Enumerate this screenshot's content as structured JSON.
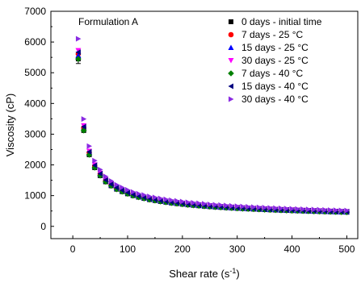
{
  "chart_data": {
    "type": "scatter",
    "annotation": "Formulation A",
    "xlabel": {
      "main": "Shear rate (s",
      "sup": "-1",
      "end": ")"
    },
    "ylabel": "Viscosity (cP)",
    "xlim": [
      -40,
      520
    ],
    "ylim": [
      -400,
      7000
    ],
    "xticks": [
      0,
      100,
      200,
      300,
      400,
      500
    ],
    "yticks": [
      0,
      1000,
      2000,
      3000,
      4000,
      5000,
      6000,
      7000
    ],
    "xtick_labels": [
      "0",
      "100",
      "200",
      "300",
      "400",
      "500"
    ],
    "ytick_labels": [
      "0",
      "1000",
      "2000",
      "3000",
      "4000",
      "5000",
      "6000",
      "7000"
    ],
    "grid": false,
    "legend_position": "top-right",
    "x": [
      10,
      20,
      30,
      40,
      50,
      60,
      70,
      80,
      90,
      100,
      110,
      120,
      130,
      140,
      150,
      160,
      170,
      180,
      190,
      200,
      210,
      220,
      230,
      240,
      250,
      260,
      270,
      280,
      290,
      300,
      310,
      320,
      330,
      340,
      350,
      360,
      370,
      380,
      390,
      400,
      410,
      420,
      430,
      440,
      450,
      460,
      470,
      480,
      490,
      500
    ],
    "series": [
      {
        "name": "0 days - initial time",
        "marker": "square",
        "color": "#000000",
        "factor": 1.0,
        "first_error": 150
      },
      {
        "name": "7 days - 25 °C",
        "marker": "circle",
        "color": "#ff0000",
        "factor": 1.03,
        "first_error": 0
      },
      {
        "name": "15 days - 25 °C",
        "marker": "triangle-up",
        "color": "#0000ff",
        "factor": 1.02,
        "first_error": 0
      },
      {
        "name": "30 days - 25 °C",
        "marker": "triangle-down",
        "color": "#ff00ff",
        "factor": 1.05,
        "first_error": 0
      },
      {
        "name": "7 days - 40 °C",
        "marker": "diamond",
        "color": "#008000",
        "factor": 1.0,
        "first_error": 0
      },
      {
        "name": "15 days - 40 °C",
        "marker": "triangle-left",
        "color": "#000080",
        "factor": 1.04,
        "first_error": 0
      },
      {
        "name": "30 days - 40 °C",
        "marker": "triangle-right",
        "color": "#8a2be2",
        "factor": 1.12,
        "first_error": 0
      }
    ],
    "base_values": [
      5450,
      3120,
      2330,
      1910,
      1650,
      1450,
      1320,
      1210,
      1130,
      1060,
      1000,
      950,
      910,
      870,
      840,
      810,
      785,
      760,
      740,
      720,
      700,
      685,
      670,
      655,
      640,
      628,
      617,
      606,
      596,
      586,
      577,
      568,
      560,
      552,
      544,
      537,
      530,
      523,
      517,
      511,
      505,
      499,
      493,
      488,
      483,
      478,
      473,
      468,
      464,
      460
    ]
  }
}
